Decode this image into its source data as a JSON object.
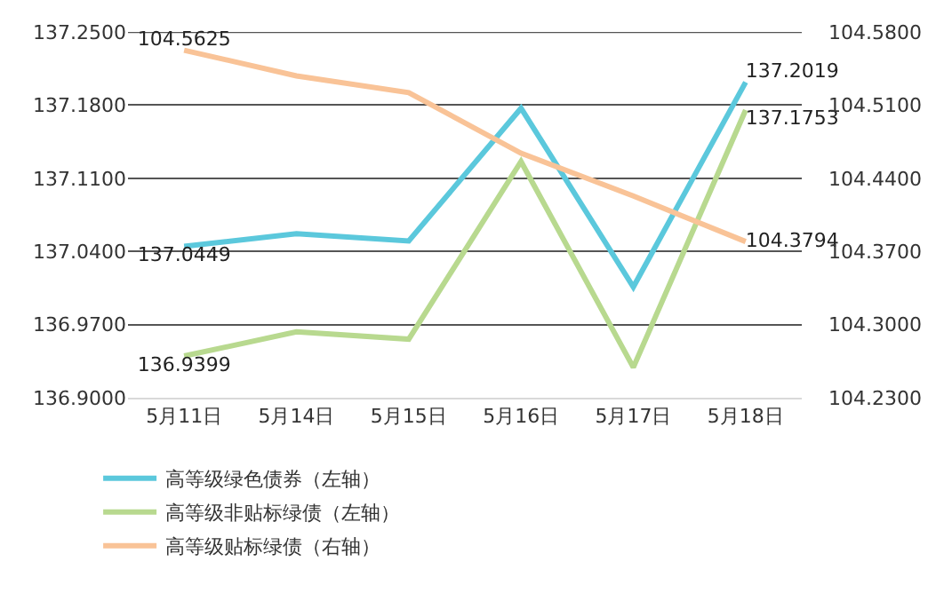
{
  "chart_data": {
    "type": "line",
    "categories": [
      "5月11日",
      "5月14日",
      "5月15日",
      "5月16日",
      "5月17日",
      "5月18日"
    ],
    "series": [
      {
        "name": "高等级绿色债券（左轴）",
        "color": "#5bc8dc",
        "values": [
          137.0449,
          137.057,
          137.05,
          137.177,
          137.006,
          137.2019
        ],
        "value_labels": [
          "137.0449",
          null,
          null,
          null,
          null,
          "137.2019"
        ]
      },
      {
        "name": "高等级非贴标绿债（左轴）",
        "color": "#b8d98f",
        "values": [
          136.9399,
          136.963,
          136.956,
          137.126,
          136.929,
          137.1753
        ],
        "value_labels": [
          "136.9399",
          null,
          null,
          null,
          null,
          "137.1753"
        ]
      },
      {
        "name": "高等级贴标绿债（右轴）",
        "color": "#f9c397",
        "axis": "y2",
        "values": [
          104.5625,
          104.538,
          104.522,
          104.464,
          104.423,
          104.3794
        ],
        "value_labels": [
          "104.5625",
          null,
          null,
          null,
          null,
          "104.3794"
        ]
      }
    ],
    "ylim": [
      136.9,
      137.25
    ],
    "yticks": [
      {
        "value": 136.9,
        "label": "136.9000"
      },
      {
        "value": 136.97,
        "label": "136.9700"
      },
      {
        "value": 137.04,
        "label": "137.0400"
      },
      {
        "value": 137.11,
        "label": "137.1100"
      },
      {
        "value": 137.18,
        "label": "137.1800"
      },
      {
        "value": 137.25,
        "label": "137.2500"
      }
    ],
    "y2lim": [
      104.23,
      104.58
    ],
    "y2ticks": [
      {
        "value": 104.23,
        "label": "104.2300"
      },
      {
        "value": 104.3,
        "label": "104.3000"
      },
      {
        "value": 104.37,
        "label": "104.3700"
      },
      {
        "value": 104.44,
        "label": "104.4400"
      },
      {
        "value": 104.51,
        "label": "104.5100"
      },
      {
        "value": 104.58,
        "label": "104.5800"
      }
    ],
    "grid": "y",
    "legend": "bottom",
    "marker": "none",
    "line_style": "solid"
  }
}
